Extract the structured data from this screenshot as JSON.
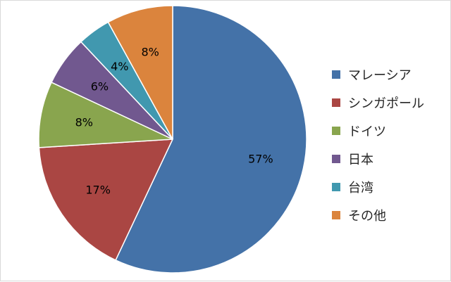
{
  "chart_data": {
    "type": "pie",
    "start_angle_deg": 0,
    "direction": "clockwise",
    "legend_position": "right",
    "slices": [
      {
        "label": "マレーシア",
        "value": 57,
        "display": "57%",
        "color": "#4472a8"
      },
      {
        "label": "シンガポール",
        "value": 17,
        "display": "17%",
        "color": "#aa4643"
      },
      {
        "label": "ドイツ",
        "value": 8,
        "display": "8%",
        "color": "#89a54e"
      },
      {
        "label": "日本",
        "value": 6,
        "display": "6%",
        "color": "#71588f"
      },
      {
        "label": "台湾",
        "value": 4,
        "display": "4%",
        "color": "#4198af"
      },
      {
        "label": "その他",
        "value": 8,
        "display": "8%",
        "color": "#db843d"
      }
    ]
  }
}
